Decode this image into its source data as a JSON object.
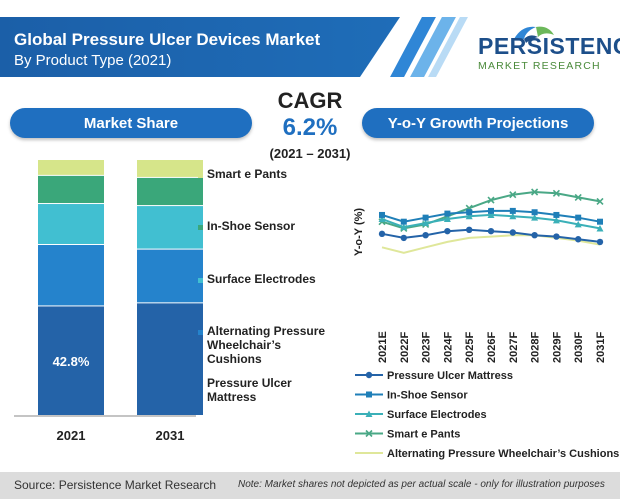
{
  "header": {
    "title": "Global Pressure Ulcer Devices Market",
    "subtitle": "By Product Type (2021)"
  },
  "logo": {
    "word": "PERSISTENCE",
    "sub": "MARKET RESEARCH"
  },
  "left_panel_title": "Market Share",
  "right_panel_title": "Y-o-Y Growth Projections",
  "cagr": {
    "label": "CAGR",
    "value": "6.2%",
    "period": "(2021 – 2031)"
  },
  "footer": {
    "source": "Source: Persistence Market Research",
    "note": "Note: Market shares not depicted as per actual scale - only for illustration purposes"
  },
  "colors": {
    "header": "#1b5fa8",
    "accent": "#1f6fc0",
    "pressure_ulcer_mattress": "#2463a8",
    "alternating_pressure": "#2583cc",
    "surface_electrodes": "#41bfd1",
    "in_shoe_sensor": "#3aa77a",
    "smart_pants": "#d6e58a"
  },
  "chart_data": [
    {
      "type": "bar",
      "stacked": true,
      "title": "Market Share",
      "categories": [
        "2021",
        "2031"
      ],
      "series": [
        {
          "name": "Pressure Ulcer Mattress",
          "values": [
            42.8,
            44.0
          ],
          "color": "#2463a8"
        },
        {
          "name": "Alternating Pressure Wheelchair’s Cushions",
          "values": [
            24.0,
            21.0
          ],
          "color": "#2583cc"
        },
        {
          "name": "Surface Electrodes",
          "values": [
            16.0,
            17.0
          ],
          "color": "#41bfd1"
        },
        {
          "name": "In-Shoe Sensor",
          "values": [
            11.0,
            11.0
          ],
          "color": "#3aa77a"
        },
        {
          "name": "Smart e Pants",
          "values": [
            6.2,
            7.0
          ],
          "color": "#d6e58a"
        }
      ],
      "data_labels": [
        {
          "category": "2021",
          "series": "Pressure Ulcer Mattress",
          "text": "42.8%"
        }
      ],
      "legend": [
        "Smart e Pants",
        "In-Shoe Sensor",
        "Surface Electrodes",
        "Alternating Pressure Wheelchair’s Cushions",
        "Pressure Ulcer Mattress"
      ],
      "legend_lines": [
        [
          "Smart e Pants"
        ],
        [
          "In-Shoe Sensor"
        ],
        [
          "Surface Electrodes"
        ],
        [
          "Alternating Pressure",
          "Wheelchair’s",
          "Cushions"
        ],
        [
          "Pressure Ulcer",
          "Mattress"
        ]
      ],
      "legend_position": "right",
      "ylim": [
        0,
        100
      ]
    },
    {
      "type": "line",
      "title": "Y-o-Y Growth Projections",
      "ylabel": "Y-o-Y (%)",
      "x": [
        "2021E",
        "2022F",
        "2023F",
        "2024F",
        "2025F",
        "2026F",
        "2027F",
        "2028F",
        "2029F",
        "2030F",
        "2031F"
      ],
      "series": [
        {
          "name": "Pressure Ulcer Mattress",
          "color": "#2463a8",
          "marker": "circle",
          "values": [
            4.9,
            4.6,
            4.8,
            5.1,
            5.2,
            5.1,
            5.0,
            4.8,
            4.7,
            4.5,
            4.3
          ]
        },
        {
          "name": "In-Shoe Sensor",
          "color": "#1f7fb8",
          "marker": "square",
          "values": [
            6.3,
            5.8,
            6.1,
            6.4,
            6.5,
            6.6,
            6.6,
            6.5,
            6.3,
            6.1,
            5.8
          ]
        },
        {
          "name": "Surface Electrodes",
          "color": "#3ab0b8",
          "marker": "triangle",
          "values": [
            6.0,
            5.4,
            5.7,
            6.0,
            6.2,
            6.3,
            6.2,
            6.1,
            5.9,
            5.6,
            5.3
          ]
        },
        {
          "name": "Smart e Pants",
          "color": "#4aa886",
          "marker": "x",
          "values": [
            5.8,
            5.3,
            5.6,
            6.2,
            6.8,
            7.4,
            7.8,
            8.0,
            7.9,
            7.6,
            7.3
          ]
        },
        {
          "name": "Alternating Pressure Wheelchair’s Cushions",
          "color": "#dfe79a",
          "marker": "none",
          "values": [
            3.9,
            3.5,
            3.9,
            4.3,
            4.6,
            4.7,
            4.8,
            4.8,
            4.6,
            4.4,
            4.1
          ]
        }
      ],
      "ylim": [
        0,
        10
      ],
      "grid": false,
      "legend_position": "bottom"
    }
  ]
}
